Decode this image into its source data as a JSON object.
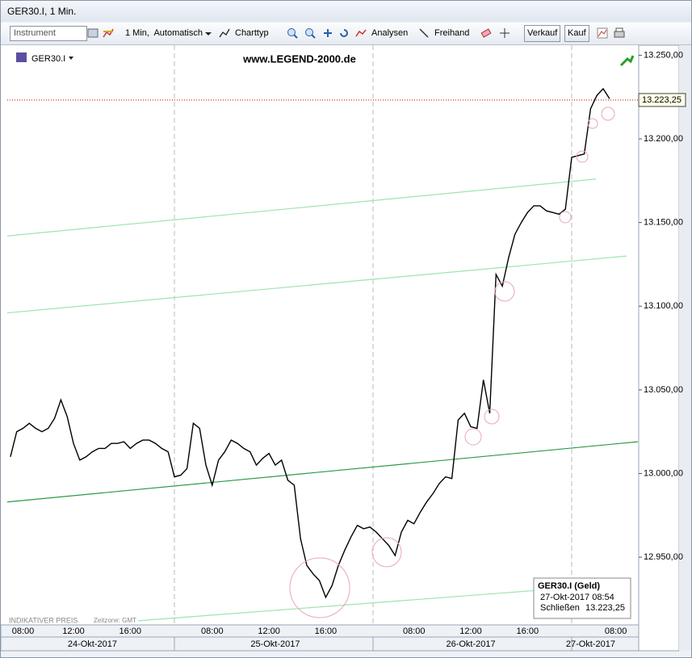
{
  "window": {
    "title": "GER30.I, 1 Min."
  },
  "toolbar": {
    "instrument": "Instrument",
    "interval": "1 Min,  Automatisch",
    "charttype": "Charttyp",
    "analyses": "Analysen",
    "freehand": "Freihand",
    "sell": "Verkauf",
    "buy": "Kauf"
  },
  "chart_data": {
    "type": "line",
    "symbol": "GER30.I",
    "watermark": "www.LEGEND-2000.de",
    "categories": [
      null,
      null,
      "08:00",
      null,
      null,
      null,
      null,
      null,
      null,
      null,
      "12:00",
      null,
      null,
      null,
      null,
      null,
      null,
      null,
      null,
      "16:00",
      null,
      null,
      null,
      null,
      null,
      null,
      null,
      null,
      null,
      null,
      null,
      null,
      "08:00",
      null,
      null,
      null,
      null,
      null,
      null,
      null,
      null,
      "12:00",
      null,
      null,
      null,
      null,
      null,
      null,
      null,
      null,
      "16:00",
      null,
      null,
      null,
      null,
      null,
      null,
      null,
      null,
      null,
      null,
      null,
      null,
      null,
      "08:00",
      null,
      null,
      null,
      null,
      null,
      null,
      null,
      null,
      "12:00",
      null,
      null,
      null,
      null,
      null,
      null,
      null,
      null,
      "16:00",
      null,
      null,
      null,
      null,
      null,
      null,
      null,
      null,
      null,
      null,
      null,
      null,
      null,
      "08:00",
      null,
      null,
      null
    ],
    "dates": [
      null,
      null,
      null,
      null,
      null,
      null,
      null,
      null,
      null,
      null,
      null,
      null,
      null,
      "24-Okt-2017",
      null,
      null,
      null,
      null,
      null,
      null,
      null,
      null,
      null,
      null,
      null,
      null,
      null,
      null,
      null,
      null,
      null,
      null,
      null,
      null,
      null,
      null,
      null,
      null,
      null,
      null,
      null,
      null,
      "25-Okt-2017",
      null,
      null,
      null,
      null,
      null,
      null,
      null,
      null,
      null,
      null,
      null,
      null,
      null,
      null,
      null,
      null,
      null,
      null,
      null,
      null,
      null,
      null,
      null,
      null,
      null,
      null,
      null,
      null,
      null,
      null,
      "26-Okt-2017",
      null,
      null,
      null,
      null,
      null,
      null,
      null,
      null,
      null,
      null,
      null,
      null,
      null,
      null,
      null,
      null,
      null,
      null,
      "27-Okt-2017",
      null,
      null,
      null,
      null,
      null,
      null
    ],
    "color": "#000000",
    "values": [
      13010,
      13025,
      13027,
      13030,
      13027,
      13025,
      13027,
      13033,
      13044,
      13034,
      13018,
      13008,
      13010,
      13013,
      13015,
      13015,
      13018,
      13018,
      13019,
      13015,
      13018,
      13020,
      13020,
      13018,
      13015,
      13013,
      12998,
      12999,
      13003,
      13030,
      13027,
      13005,
      12993,
      13008,
      13013,
      13020,
      13018,
      13015,
      13013,
      13005,
      13009,
      13012,
      13005,
      13008,
      12996,
      12993,
      12961,
      12945,
      12940,
      12936,
      12926,
      12933,
      12945,
      12954,
      12962,
      12969,
      12967,
      12968,
      12965,
      12961,
      12957,
      12951,
      12965,
      12972,
      12970,
      12977,
      12983,
      12988,
      12994,
      12998,
      12997,
      13032,
      13036,
      13028,
      13027,
      13056,
      13036,
      13119,
      13112,
      13129,
      13143,
      13150,
      13156,
      13160,
      13160,
      13157,
      13156,
      13155,
      13158,
      13189,
      13190,
      13191,
      13218,
      13226,
      13230,
      13224,
      null,
      null,
      null,
      null
    ],
    "ylim": [
      12910,
      13256
    ],
    "yticks": [
      {
        "value": 12950,
        "label": "12.950,00"
      },
      {
        "value": 13000,
        "label": "13.000,00"
      },
      {
        "value": 13050,
        "label": "13.050,00"
      },
      {
        "value": 13100,
        "label": "13.100,00"
      },
      {
        "value": 13150,
        "label": "13.150,00"
      },
      {
        "value": 13200,
        "label": "13.200,00"
      },
      {
        "value": 13250,
        "label": "13.250,00"
      }
    ],
    "last": {
      "value": 13223.25,
      "label": "13.223,25",
      "color": "#c00000"
    },
    "trendlines": [
      {
        "color": "#9fe3b0",
        "values": [
          13142,
          13176
        ]
      },
      {
        "color": "#9fe3b0",
        "values": [
          13096,
          13130
        ]
      },
      {
        "color": "#2e9a44",
        "values": [
          12983,
          13019
        ]
      },
      {
        "color": "#9fe3b0",
        "values": [
          12912,
          12930
        ]
      }
    ],
    "info": {
      "title": "GER30.I (Geld)",
      "time": "27-Okt-2017 08:54",
      "close_label": "Schließen"
    },
    "footer": {
      "price_note": "INDIKATIVER PREIS",
      "timezone": "Zeitzone: GMT"
    }
  }
}
